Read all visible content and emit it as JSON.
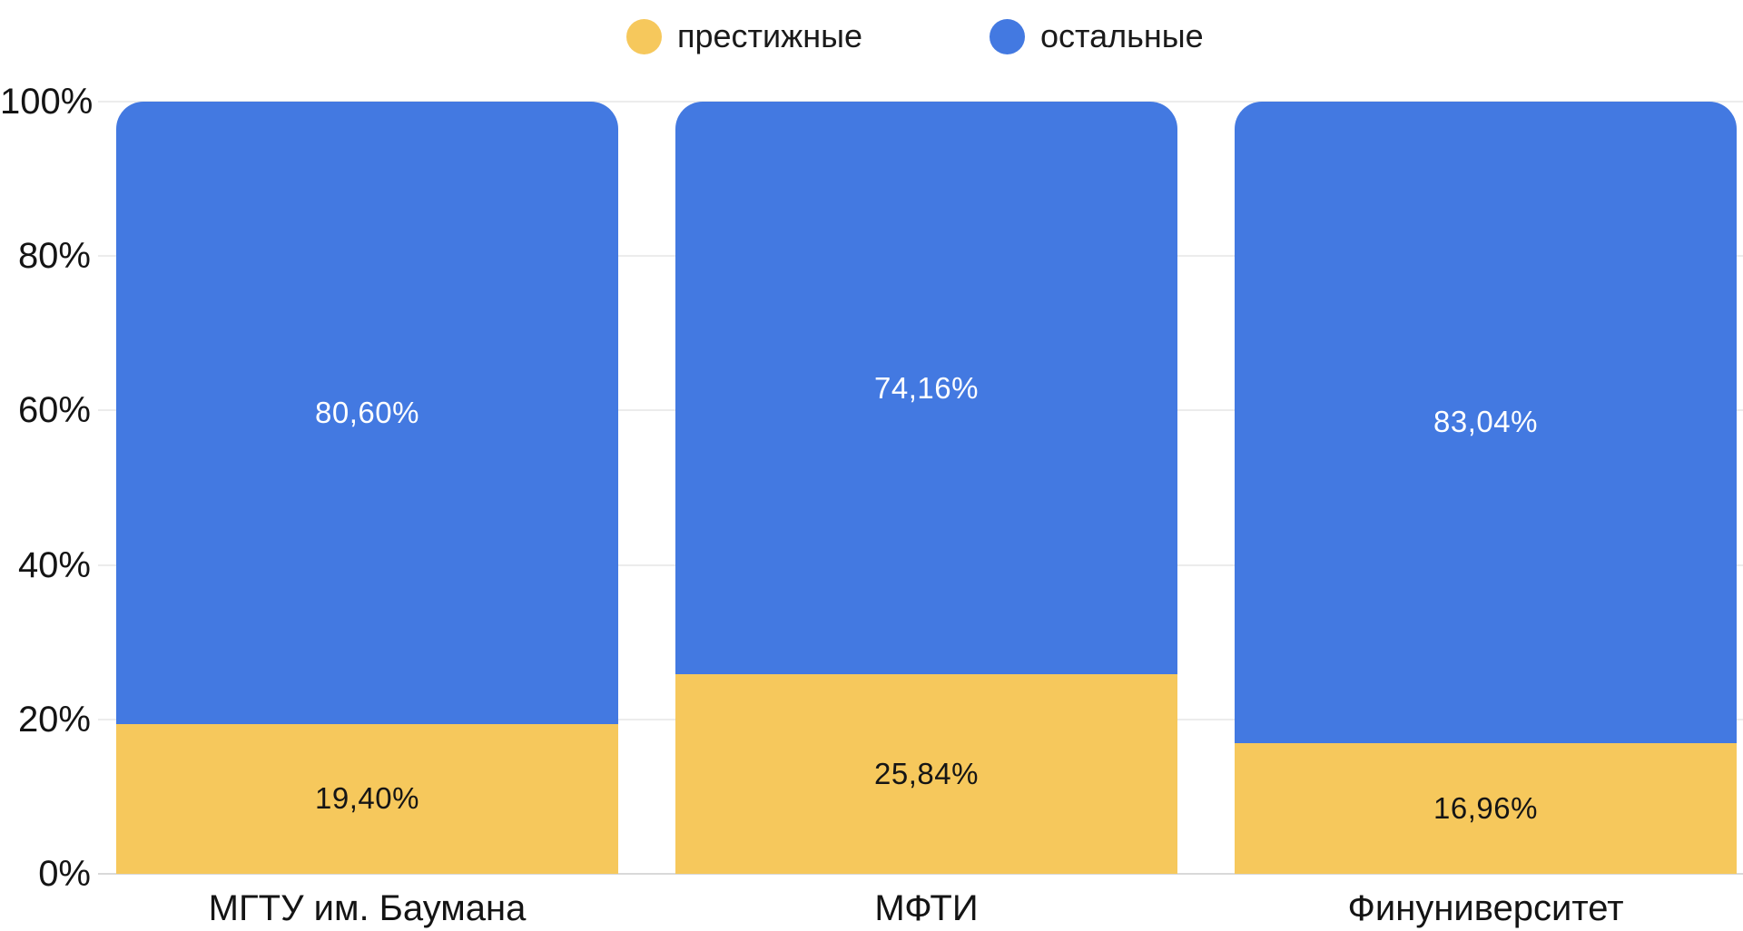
{
  "chart_data": {
    "type": "bar",
    "variant": "stacked-100",
    "title": "",
    "categories": [
      "МГТУ им. Баумана",
      "МФТИ",
      "Финуниверситет"
    ],
    "series": [
      {
        "name": "престижные",
        "color": "#f6c85c",
        "values": [
          19.4,
          25.84,
          16.96
        ],
        "labels": [
          "19,40%",
          "25,84%",
          "16,96%"
        ],
        "label_color": "#151515"
      },
      {
        "name": "остальные",
        "color": "#4379e1",
        "values": [
          80.6,
          74.16,
          83.04
        ],
        "labels": [
          "80,60%",
          "74,16%",
          "83,04%"
        ],
        "label_color": "#ffffff"
      }
    ],
    "y_axis": {
      "min": 0,
      "max": 100,
      "tick_step": 20,
      "tick_labels": [
        "0%",
        "20%",
        "40%",
        "60%",
        "80%",
        "100%"
      ],
      "grid": true
    },
    "legend": {
      "position": "top"
    },
    "colors": {
      "grid": "#ececec",
      "axis_line": "#d9d9d9",
      "text": "#141414",
      "background": "#ffffff"
    }
  }
}
